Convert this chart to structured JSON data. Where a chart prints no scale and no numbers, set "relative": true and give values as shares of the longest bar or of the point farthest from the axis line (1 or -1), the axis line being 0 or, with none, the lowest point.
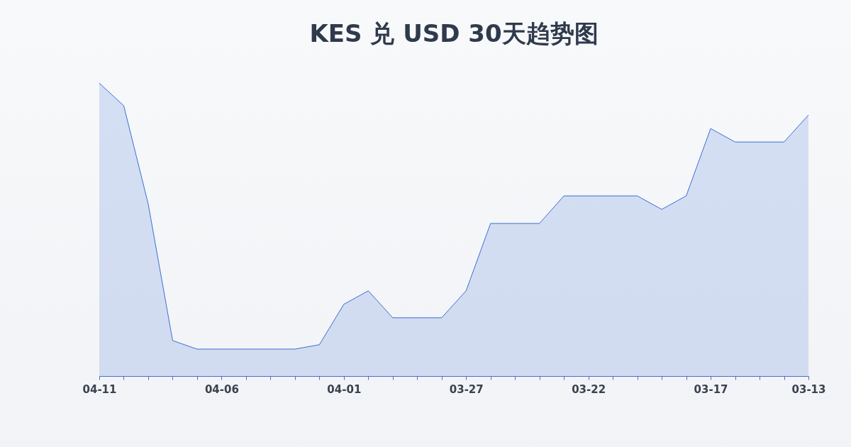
{
  "chart_data": {
    "type": "area",
    "title": "KES 兑 USD 30天趋势图",
    "relative": true,
    "categories": [
      "04-11",
      null,
      null,
      null,
      null,
      "04-06",
      null,
      null,
      null,
      null,
      "04-01",
      null,
      null,
      null,
      null,
      "03-27",
      null,
      null,
      null,
      null,
      "03-22",
      null,
      null,
      null,
      null,
      "03-17",
      null,
      null,
      null,
      "03-13"
    ],
    "series": [
      {
        "color": "#3b6fd4",
        "values": [
          1,
          0.923,
          0.588,
          0.121,
          0.092,
          0.092,
          0.092,
          0.092,
          0.092,
          0.107,
          0.245,
          0.291,
          0.199,
          0.199,
          0.199,
          0.291,
          0.521,
          0.521,
          0.521,
          0.615,
          0.615,
          0.615,
          0.615,
          0.569,
          0.615,
          0.845,
          0.799,
          0.799,
          0.799,
          0.891
        ]
      }
    ]
  }
}
